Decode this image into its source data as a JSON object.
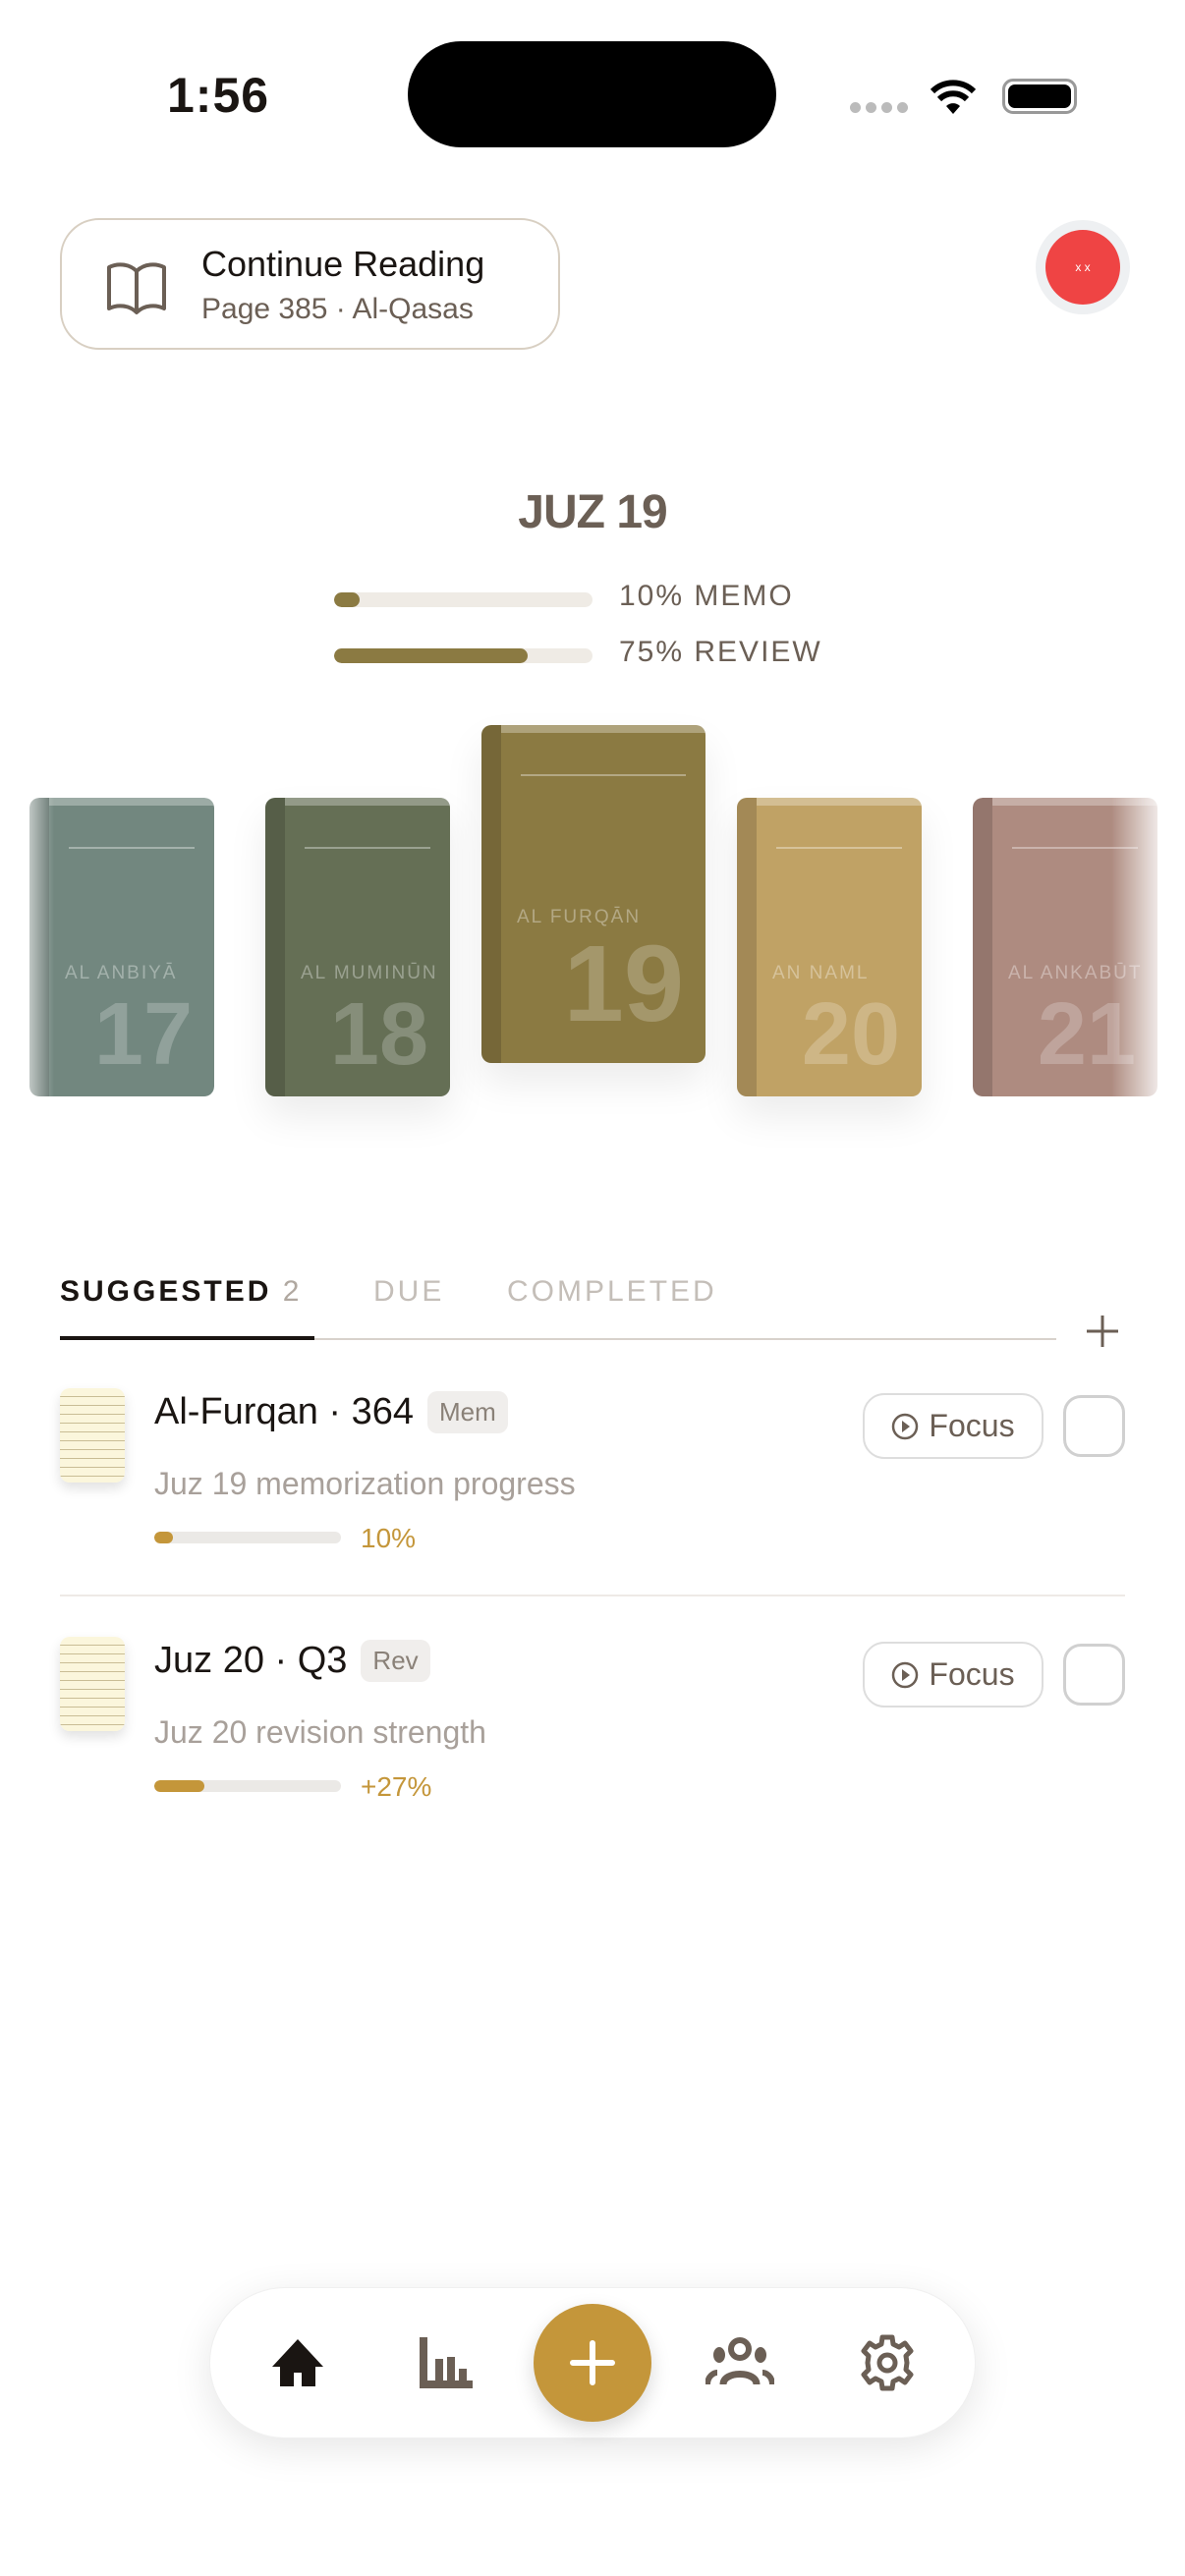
{
  "status": {
    "time": "1:56"
  },
  "continue": {
    "title": "Continue Reading",
    "subtitle": "Page 385 · Al-Qasas",
    "icon": "book-open-icon"
  },
  "avatar": {
    "text": "x x",
    "color": "#ef4444"
  },
  "juz": {
    "title": "JUZ 19",
    "memo_label": "10% MEMO",
    "memo_percent": 10,
    "review_label": "75% REVIEW",
    "review_percent": 75,
    "accent": "#8b7a42"
  },
  "books": [
    {
      "name": "AL ANBIYĀ",
      "number": "17",
      "color": "#72877f"
    },
    {
      "name": "AL MUMINŪN",
      "number": "18",
      "color": "#656f55"
    },
    {
      "name": "AL FURQĀN",
      "number": "19",
      "color": "#8b7a42",
      "selected": true
    },
    {
      "name": "AN NAML",
      "number": "20",
      "color": "#c0a265"
    },
    {
      "name": "AL ANKABŪT",
      "number": "21",
      "color": "#ae8b80"
    }
  ],
  "tabs": [
    {
      "label": "SUGGESTED",
      "count": "2",
      "active": true
    },
    {
      "label": "DUE"
    },
    {
      "label": "COMPLETED"
    }
  ],
  "tasks": [
    {
      "title": "Al-Furqan · 364",
      "badge": "Mem",
      "desc": "Juz 19 memorization progress",
      "progress": 10,
      "progress_label": "10%",
      "focus": "Focus"
    },
    {
      "title": "Juz 20 · Q3",
      "badge": "Rev",
      "desc": "Juz 20 revision strength",
      "progress": 27,
      "progress_label": "+27%",
      "focus": "Focus"
    }
  ],
  "nav": {
    "items": [
      "home-icon",
      "stats-icon",
      "add-icon",
      "community-icon",
      "settings-icon"
    ],
    "fab_color": "#c4963a"
  }
}
